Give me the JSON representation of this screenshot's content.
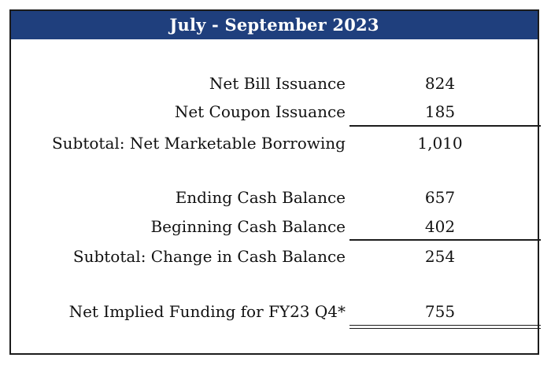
{
  "table": {
    "title": "July - September 2023",
    "rows": [
      {
        "label": "Net Bill Issuance",
        "value": "824"
      },
      {
        "label": "Net Coupon Issuance",
        "value": "185"
      },
      {
        "label": "Subtotal: Net Marketable Borrowing",
        "value": "1,010"
      },
      {
        "label": "Ending Cash Balance",
        "value": "657"
      },
      {
        "label": "Beginning Cash Balance",
        "value": "402"
      },
      {
        "label": "Subtotal: Change in Cash Balance",
        "value": "254"
      },
      {
        "label": "Net Implied Funding for FY23 Q4*",
        "value": "755"
      }
    ]
  }
}
